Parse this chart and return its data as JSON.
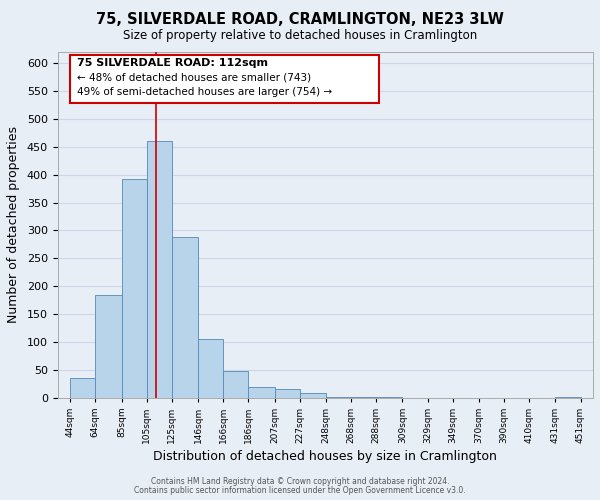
{
  "title": "75, SILVERDALE ROAD, CRAMLINGTON, NE23 3LW",
  "subtitle": "Size of property relative to detached houses in Cramlington",
  "xlabel": "Distribution of detached houses by size in Cramlington",
  "ylabel": "Number of detached properties",
  "bar_left_edges": [
    44,
    64,
    85,
    105,
    125,
    146,
    166,
    186,
    207,
    227,
    248,
    268,
    288,
    309,
    329,
    349,
    370,
    390,
    410,
    431
  ],
  "bar_widths": [
    20,
    21,
    20,
    20,
    21,
    20,
    20,
    21,
    20,
    21,
    20,
    20,
    21,
    20,
    20,
    21,
    20,
    20,
    21,
    20
  ],
  "bar_heights": [
    35,
    185,
    393,
    460,
    288,
    105,
    48,
    20,
    15,
    8,
    2,
    1,
    1,
    0,
    0,
    0,
    0,
    0,
    0,
    1
  ],
  "bar_color": "#b8d4ea",
  "bar_edge_color": "#5588bb",
  "tick_labels": [
    "44sqm",
    "64sqm",
    "85sqm",
    "105sqm",
    "125sqm",
    "146sqm",
    "166sqm",
    "186sqm",
    "207sqm",
    "227sqm",
    "248sqm",
    "268sqm",
    "288sqm",
    "309sqm",
    "329sqm",
    "349sqm",
    "370sqm",
    "390sqm",
    "410sqm",
    "431sqm",
    "451sqm"
  ],
  "tick_positions": [
    44,
    64,
    85,
    105,
    125,
    146,
    166,
    186,
    207,
    227,
    248,
    268,
    288,
    309,
    329,
    349,
    370,
    390,
    410,
    431,
    451
  ],
  "ylim": [
    0,
    620
  ],
  "xlim": [
    34,
    461
  ],
  "vline_x": 112,
  "vline_color": "#cc0000",
  "annotation_line1": "75 SILVERDALE ROAD: 112sqm",
  "annotation_line2": "← 48% of detached houses are smaller (743)",
  "annotation_line3": "49% of semi-detached houses are larger (754) →",
  "annotation_box_color": "#ffffff",
  "annotation_border_color": "#cc0000",
  "footer_line1": "Contains HM Land Registry data © Crown copyright and database right 2024.",
  "footer_line2": "Contains public sector information licensed under the Open Government Licence v3.0.",
  "grid_color": "#ccd8e8",
  "background_color": "#e8eef6",
  "yticks": [
    0,
    50,
    100,
    150,
    200,
    250,
    300,
    350,
    400,
    450,
    500,
    550,
    600
  ]
}
